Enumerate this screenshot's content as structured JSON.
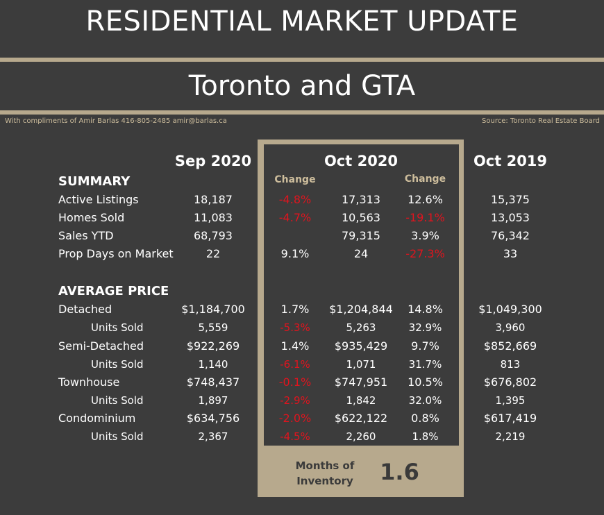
{
  "header": {
    "title": "RESIDENTIAL MARKET UPDATE",
    "subtitle": "Toronto and GTA",
    "credit": "With compliments of Amir Barlas 416-805-2485 amir@barlas.ca",
    "source": "Source: Toronto Real Estate Board"
  },
  "columns": {
    "sep2020": "Sep 2020",
    "oct2020": "Oct 2020",
    "oct2019": "Oct 2019",
    "change": "Change"
  },
  "sections": {
    "summary": "SUMMARY",
    "average_price": "AVERAGE PRICE"
  },
  "rows": [
    {
      "label": "Active Listings",
      "sep2020": "18,187",
      "change_mom": "-4.8%",
      "oct2020": "17,313",
      "change_yoy": "12.6%",
      "oct2019": "15,375"
    },
    {
      "label": "Homes Sold",
      "sep2020": "11,083",
      "change_mom": "-4.7%",
      "oct2020": "10,563",
      "change_yoy": "-19.1%",
      "oct2019": "13,053"
    },
    {
      "label": "Sales YTD",
      "sep2020": "68,793",
      "change_mom": "",
      "oct2020": "79,315",
      "change_yoy": "3.9%",
      "oct2019": "76,342"
    },
    {
      "label": "Prop Days on Market",
      "sep2020": "22",
      "change_mom": "9.1%",
      "oct2020": "24",
      "change_yoy": "-27.3%",
      "oct2019": "33"
    },
    {
      "label": "Detached",
      "sep2020": "$1,184,700",
      "change_mom": "1.7%",
      "oct2020": "$1,204,844",
      "change_yoy": "14.8%",
      "oct2019": "$1,049,300"
    },
    {
      "label": "Units Sold",
      "sep2020": "5,559",
      "change_mom": "-5.3%",
      "oct2020": "5,263",
      "change_yoy": "32.9%",
      "oct2019": "3,960"
    },
    {
      "label": "Semi-Detached",
      "sep2020": "$922,269",
      "change_mom": "1.4%",
      "oct2020": "$935,429",
      "change_yoy": "9.7%",
      "oct2019": "$852,669"
    },
    {
      "label": "Units Sold",
      "sep2020": "1,140",
      "change_mom": "-6.1%",
      "oct2020": "1,071",
      "change_yoy": "31.7%",
      "oct2019": "813"
    },
    {
      "label": "Townhouse",
      "sep2020": "$748,437",
      "change_mom": "-0.1%",
      "oct2020": "$747,951",
      "change_yoy": "10.5%",
      "oct2019": "$676,802"
    },
    {
      "label": "Units Sold",
      "sep2020": "1,897",
      "change_mom": "-2.9%",
      "oct2020": "1,842",
      "change_yoy": "32.0%",
      "oct2019": "1,395"
    },
    {
      "label": "Condominium",
      "sep2020": "$634,756",
      "change_mom": "-2.0%",
      "oct2020": "$622,122",
      "change_yoy": "0.8%",
      "oct2019": "$617,419"
    },
    {
      "label": "Units Sold",
      "sep2020": "2,367",
      "change_mom": "-4.5%",
      "oct2020": "2,260",
      "change_yoy": "1.8%",
      "oct2019": "2,219"
    }
  ],
  "months_of_inventory": {
    "label": "Months of Inventory",
    "value": "1.6"
  },
  "colors": {
    "background": "#3c3c3c",
    "accent": "#b7a98d",
    "negative": "#e0141e"
  }
}
